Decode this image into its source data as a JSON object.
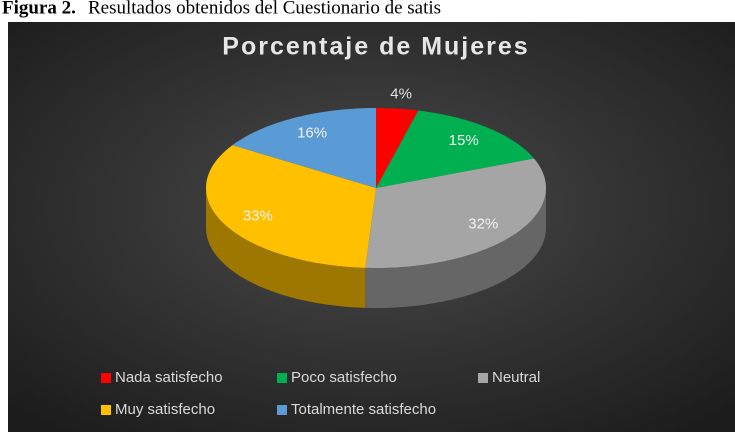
{
  "caption": {
    "label": "Figura 2.",
    "text": "Resultados obtenidos del Cuestionario de satis"
  },
  "chart_data": {
    "type": "pie3d",
    "title": "Porcentaje de Mujeres",
    "categories": [
      "Nada satisfecho",
      "Poco satisfecho",
      "Neutral",
      "Muy satisfecho",
      "Totalmente satisfecho"
    ],
    "values": [
      4,
      15,
      32,
      33,
      16
    ],
    "value_labels": [
      "4%",
      "15%",
      "32%",
      "33%",
      "16%"
    ],
    "colors": [
      "#ff0000",
      "#00b050",
      "#a5a5a5",
      "#ffc000",
      "#5b9bd5"
    ],
    "legend": "bottom"
  }
}
